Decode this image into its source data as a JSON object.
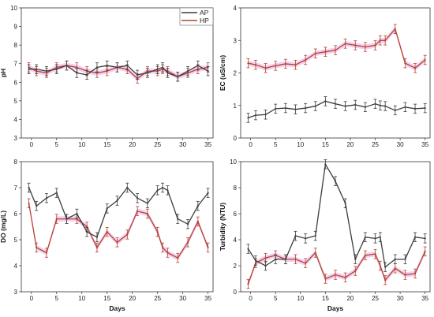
{
  "colors": {
    "AP": "#3c3c3c",
    "HP": "#b5432e",
    "HP_band": "#f2c8ee"
  },
  "legend": {
    "ap_label": "AP",
    "hp_label": "HP"
  },
  "chart_data": [
    {
      "id": "ph",
      "type": "line",
      "ylabel": "pH",
      "xlabel": "",
      "ylim": [
        3,
        10
      ],
      "yticks": [
        3,
        4,
        5,
        6,
        7,
        8,
        9,
        10
      ],
      "xlim": [
        -2,
        36
      ],
      "xticks": [
        0,
        5,
        10,
        15,
        20,
        25,
        30,
        35
      ],
      "x": [
        -0.5,
        1,
        3,
        5,
        7,
        9,
        11,
        13,
        15,
        17,
        19,
        21,
        23,
        25,
        26,
        27,
        29,
        31,
        33,
        35
      ],
      "series": [
        {
          "name": "AP",
          "values": [
            6.7,
            6.7,
            6.6,
            6.7,
            6.9,
            6.5,
            6.4,
            6.8,
            6.9,
            6.8,
            6.9,
            6.4,
            6.5,
            6.7,
            6.8,
            6.5,
            6.3,
            6.6,
            6.9,
            6.6
          ]
        },
        {
          "name": "HP",
          "values": [
            6.8,
            6.6,
            6.5,
            6.8,
            6.9,
            6.8,
            6.6,
            6.5,
            6.6,
            6.8,
            6.7,
            6.2,
            6.6,
            6.6,
            6.7,
            6.6,
            6.3,
            6.5,
            6.7,
            6.8
          ]
        }
      ]
    },
    {
      "id": "ec",
      "type": "line",
      "ylabel": "EC (uS/cm)",
      "xlabel": "",
      "ylim": [
        0,
        4
      ],
      "yticks": [
        0,
        1,
        2,
        3,
        4
      ],
      "xlim": [
        -2,
        36
      ],
      "xticks": [
        0,
        5,
        10,
        15,
        20,
        25,
        30,
        35
      ],
      "x": [
        -0.5,
        1,
        3,
        5,
        7,
        9,
        11,
        13,
        15,
        17,
        19,
        21,
        23,
        25,
        26,
        27,
        29,
        31,
        33,
        35
      ],
      "series": [
        {
          "name": "AP",
          "values": [
            0.62,
            0.7,
            0.72,
            0.9,
            0.92,
            0.88,
            0.92,
            0.98,
            1.13,
            1.05,
            0.98,
            1.02,
            0.95,
            1.05,
            1.0,
            0.98,
            0.85,
            0.95,
            0.9,
            0.92
          ]
        },
        {
          "name": "HP",
          "values": [
            2.3,
            2.25,
            2.15,
            2.22,
            2.28,
            2.25,
            2.4,
            2.6,
            2.65,
            2.7,
            2.9,
            2.85,
            2.8,
            2.85,
            3.0,
            3.0,
            3.35,
            2.3,
            2.15,
            2.4
          ]
        }
      ]
    },
    {
      "id": "do",
      "type": "line",
      "ylabel": "DO (mg/L)",
      "xlabel": "Days",
      "ylim": [
        3,
        8
      ],
      "yticks": [
        3,
        4,
        5,
        6,
        7,
        8
      ],
      "xlim": [
        -2,
        36
      ],
      "xticks": [
        0,
        5,
        10,
        15,
        20,
        25,
        30,
        35
      ],
      "x": [
        -0.5,
        1,
        3,
        5,
        7,
        9,
        11,
        13,
        15,
        17,
        19,
        21,
        23,
        25,
        26,
        27,
        29,
        31,
        33,
        35
      ],
      "series": [
        {
          "name": "AP",
          "values": [
            7.0,
            6.3,
            6.6,
            6.8,
            5.8,
            6.0,
            5.3,
            5.1,
            6.2,
            6.5,
            7.0,
            6.6,
            6.4,
            6.9,
            7.0,
            6.9,
            5.8,
            5.6,
            6.3,
            6.8
          ]
        },
        {
          "name": "HP",
          "values": [
            6.4,
            4.7,
            4.5,
            5.8,
            5.8,
            5.8,
            5.5,
            4.7,
            5.3,
            4.9,
            5.2,
            6.1,
            6.0,
            5.3,
            4.7,
            4.5,
            4.3,
            4.9,
            5.7,
            4.7
          ]
        }
      ]
    },
    {
      "id": "turbidity",
      "type": "line",
      "ylabel": "Turbidity (NTU)",
      "xlabel": "Days",
      "ylim": [
        0,
        10
      ],
      "yticks": [
        0,
        2,
        4,
        6,
        8,
        10
      ],
      "xlim": [
        -2,
        36
      ],
      "xticks": [
        0,
        5,
        10,
        15,
        20,
        25,
        30,
        35
      ],
      "x": [
        -0.5,
        1,
        3,
        5,
        7,
        9,
        11,
        13,
        15,
        17,
        19,
        21,
        23,
        25,
        26,
        27,
        29,
        31,
        33,
        35
      ],
      "series": [
        {
          "name": "AP",
          "values": [
            3.3,
            2.4,
            2.0,
            2.5,
            2.5,
            4.3,
            4.1,
            4.3,
            9.8,
            8.5,
            6.8,
            2.5,
            4.2,
            4.1,
            4.2,
            1.9,
            2.5,
            2.5,
            4.2,
            4.1
          ]
        },
        {
          "name": "HP",
          "values": [
            0.6,
            2.2,
            2.6,
            2.8,
            2.5,
            2.5,
            2.2,
            3.0,
            1.0,
            1.3,
            1.1,
            1.6,
            2.8,
            2.9,
            2.0,
            0.9,
            1.8,
            1.3,
            1.4,
            3.1
          ]
        }
      ]
    }
  ]
}
